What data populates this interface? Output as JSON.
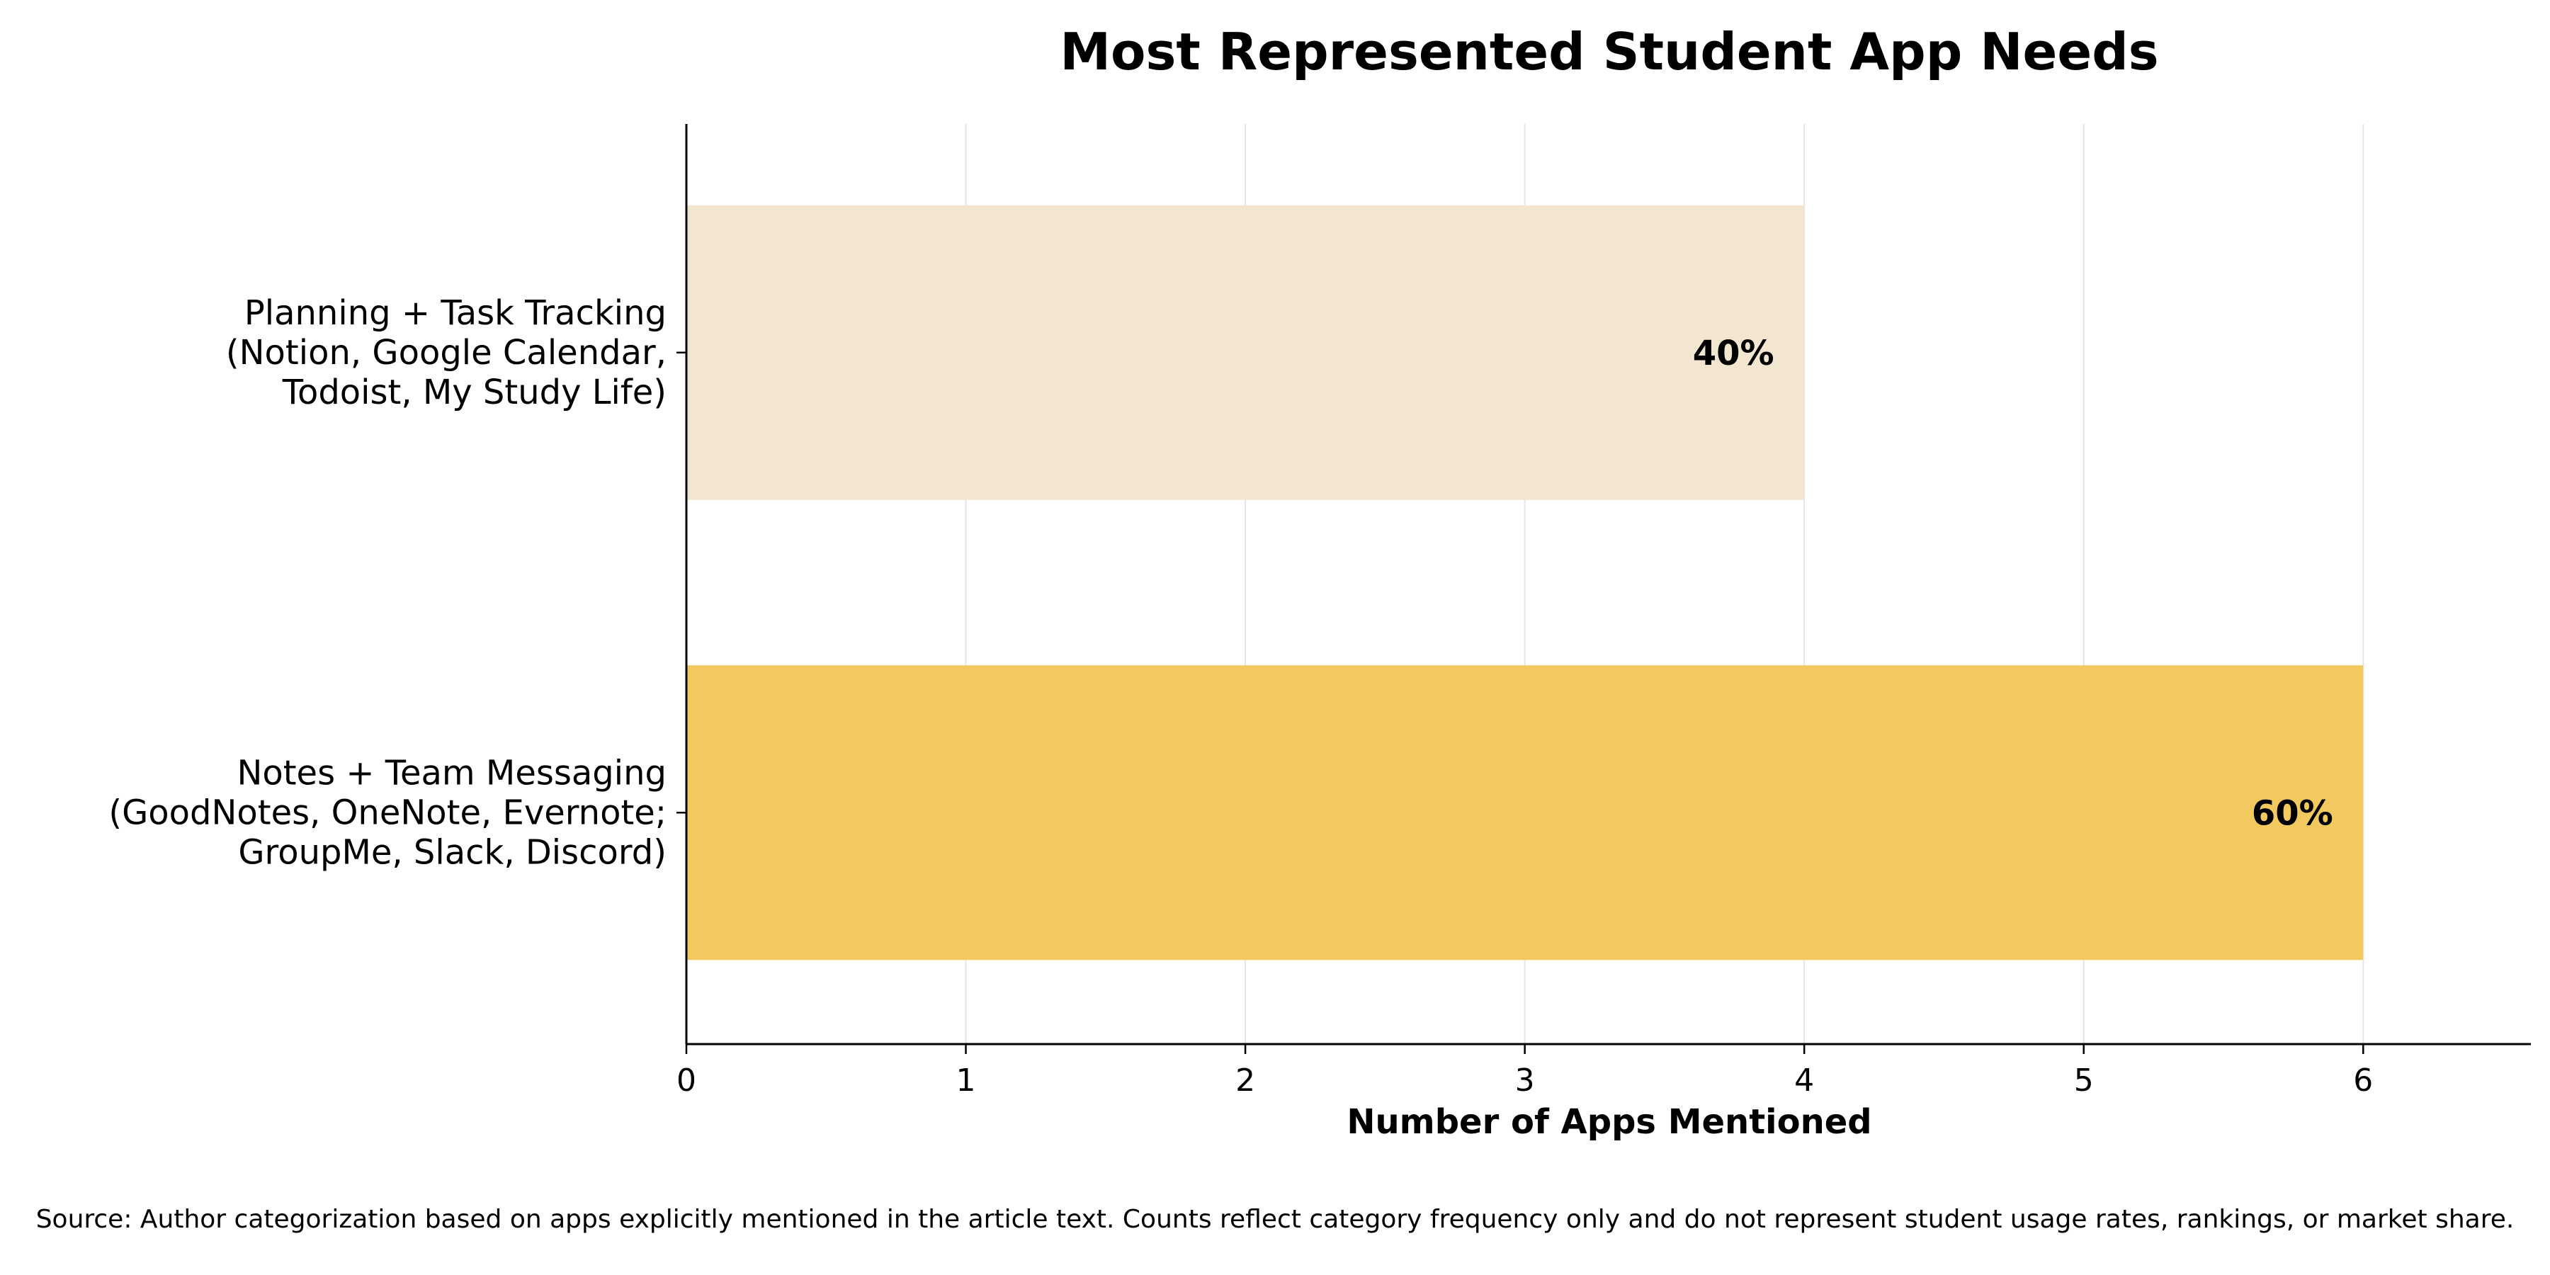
{
  "chart_data": {
    "type": "bar",
    "orientation": "horizontal",
    "title": "Most Represented Student App Needs",
    "xlabel": "Number of Apps Mentioned",
    "ylabel": "",
    "xlim": [
      0,
      6.6
    ],
    "xticks": [
      "0",
      "1",
      "2",
      "3",
      "4",
      "5",
      "6"
    ],
    "grid": "vertical",
    "categories": [
      {
        "lines": [
          "Planning + Task Tracking",
          "(Notion, Google Calendar,",
          "Todoist, My Study Life)"
        ],
        "value": 4,
        "label": "40%",
        "color": "#F2E6D0"
      },
      {
        "lines": [
          "Notes + Team Messaging",
          "(GoodNotes, OneNote, Evernote;",
          "GroupMe, Slack, Discord)"
        ],
        "value": 6,
        "label": "60%",
        "color": "#F2C95F"
      }
    ],
    "colors": {
      "axis": "#000000",
      "grid": "#E6E6E6",
      "text": "#000000"
    }
  },
  "footnote": "Source: Author categorization based on apps explicitly mentioned in the article text. Counts reflect category frequency only and do not represent student usage rates, rankings, or market share."
}
